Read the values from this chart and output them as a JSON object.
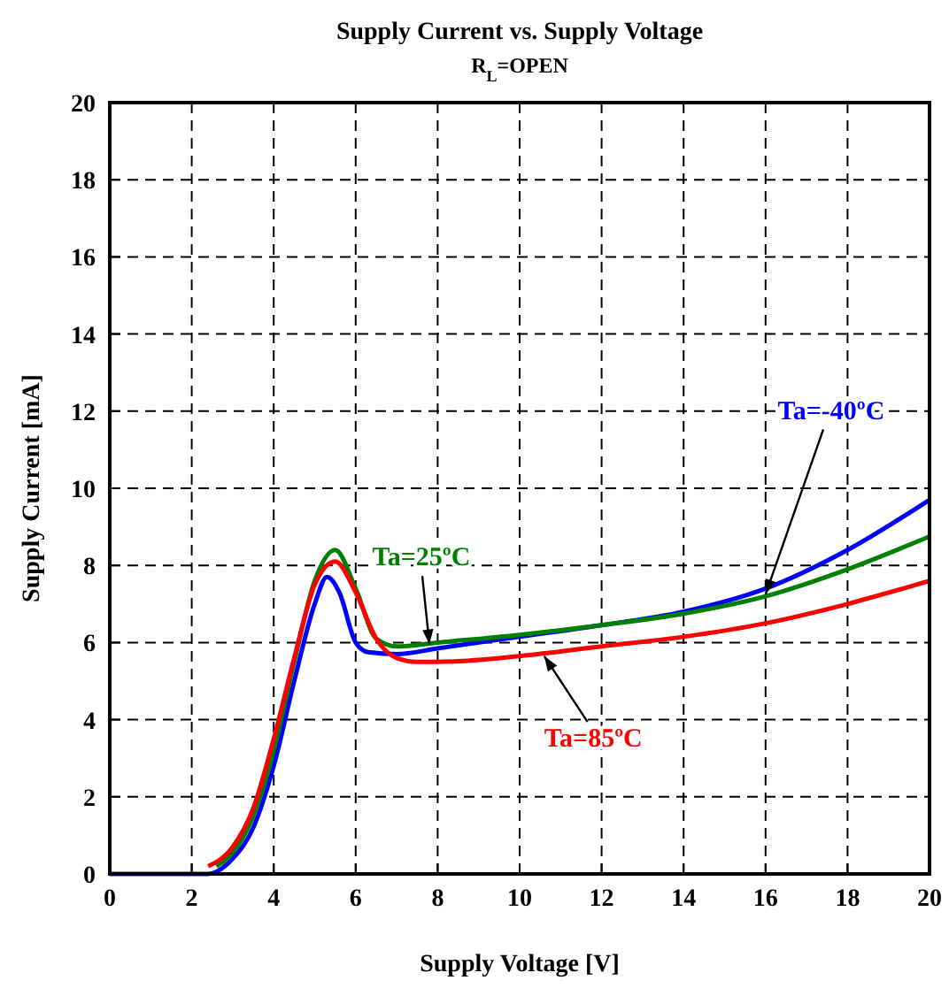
{
  "chart_data": {
    "type": "line",
    "title": "Supply Current vs. Supply Voltage",
    "subtitle": "R$_{L}$=OPEN",
    "xlabel": "Supply Voltage [V]",
    "ylabel": "Supply Current [mA]",
    "xlim": [
      0,
      20
    ],
    "xticks": [
      0,
      2,
      4,
      6,
      8,
      10,
      12,
      14,
      16,
      18,
      20
    ],
    "ylim": [
      0,
      20
    ],
    "yticks": [
      0,
      2,
      4,
      6,
      8,
      10,
      12,
      14,
      16,
      18,
      20
    ],
    "grid": true,
    "marker": "none",
    "line_style": "solid",
    "series": [
      {
        "name": "Ta=-40ºC",
        "color": "#0000ff",
        "x": [
          0,
          1,
          2,
          2.4,
          3,
          3.5,
          4,
          4.5,
          5,
          5.3,
          5.6,
          6,
          6.3,
          7,
          8,
          10,
          12,
          14,
          16,
          18,
          20
        ],
        "values": [
          0,
          0,
          0,
          0,
          0.4,
          1.2,
          2.8,
          5.0,
          7.0,
          7.7,
          7.3,
          6.0,
          5.75,
          5.7,
          5.85,
          6.15,
          6.45,
          6.8,
          7.4,
          8.4,
          9.7
        ]
      },
      {
        "name": "Ta=25ºC",
        "color": "#008000",
        "x": [
          2.6,
          3,
          3.5,
          4,
          4.5,
          5,
          5.5,
          6,
          6.5,
          7,
          8,
          10,
          12,
          14,
          16,
          18,
          20
        ],
        "values": [
          0.2,
          0.55,
          1.5,
          3.2,
          5.5,
          7.6,
          8.4,
          7.4,
          6.1,
          5.9,
          6.0,
          6.2,
          6.45,
          6.75,
          7.2,
          7.9,
          8.75
        ]
      },
      {
        "name": "Ta=85ºC",
        "color": "#ff0000",
        "x": [
          2.4,
          3,
          3.5,
          4,
          4.5,
          5,
          5.5,
          6,
          6.5,
          7,
          7.5,
          8,
          10,
          12,
          14,
          16,
          18,
          20
        ],
        "values": [
          0.2,
          0.7,
          1.7,
          3.5,
          5.6,
          7.5,
          8.1,
          7.3,
          6.1,
          5.6,
          5.5,
          5.5,
          5.65,
          5.9,
          6.15,
          6.5,
          7.0,
          7.6
        ]
      }
    ]
  }
}
